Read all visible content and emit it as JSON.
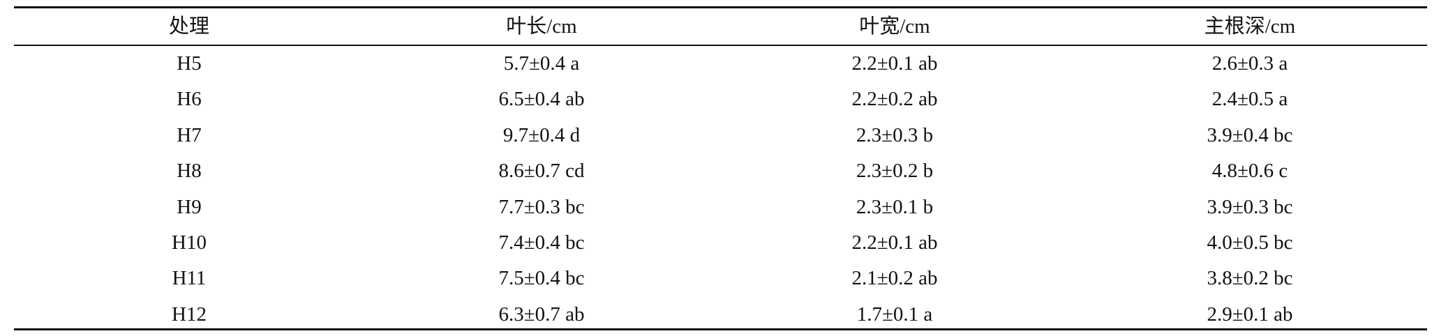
{
  "table": {
    "header": [
      "处理",
      "叶长/cm",
      "叶宽/cm",
      "主根深/cm"
    ],
    "rows": [
      [
        "H5",
        "5.7±0.4 a",
        "2.2±0.1 ab",
        "2.6±0.3 a"
      ],
      [
        "H6",
        "6.5±0.4 ab",
        "2.2±0.2 ab",
        "2.4±0.5 a"
      ],
      [
        "H7",
        "9.7±0.4 d",
        "2.3±0.3 b",
        "3.9±0.4 bc"
      ],
      [
        "H8",
        "8.6±0.7 cd",
        "2.3±0.2 b",
        "4.8±0.6 c"
      ],
      [
        "H9",
        "7.7±0.3 bc",
        "2.3±0.1 b",
        "3.9±0.3 bc"
      ],
      [
        "H10",
        "7.4±0.4 bc",
        "2.2±0.1 ab",
        "4.0±0.5 bc"
      ],
      [
        "H11",
        "7.5±0.4 bc",
        "2.1±0.2 ab",
        "3.8±0.2 bc"
      ],
      [
        "H12",
        "6.3±0.7 ab",
        "1.7±0.1 a",
        "2.9±0.1 ab"
      ]
    ]
  }
}
